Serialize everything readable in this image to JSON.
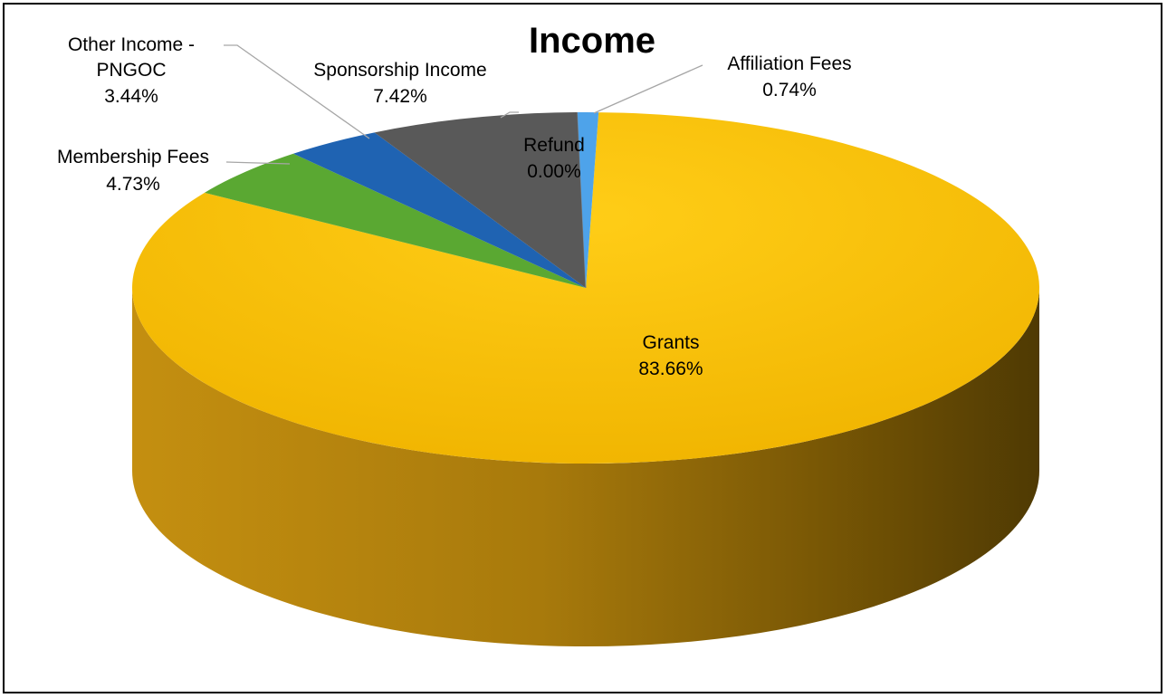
{
  "chart_data": {
    "type": "pie",
    "title": "Income",
    "slices": [
      {
        "name": "Grants",
        "value": 83.66,
        "label": "83.66%",
        "color": "#ffc000"
      },
      {
        "name": "Membership Fees",
        "value": 4.73,
        "label": "4.73%",
        "color": "#5aa832"
      },
      {
        "name": "Other Income - PNGOC",
        "value": 3.44,
        "label": "3.44%",
        "color": "#1f63b2"
      },
      {
        "name": "Sponsorship Income",
        "value": 7.42,
        "label": "7.42%",
        "color": "#595959"
      },
      {
        "name": "Refund",
        "value": 0.0,
        "label": "0.00%",
        "color": "#7f7f7f"
      },
      {
        "name": "Affiliation Fees",
        "value": 0.74,
        "label": "0.74%",
        "color": "#4ea3ea"
      }
    ]
  },
  "labels": {
    "other_income_line1": "Other Income -",
    "other_income_line2": "PNGOC"
  }
}
